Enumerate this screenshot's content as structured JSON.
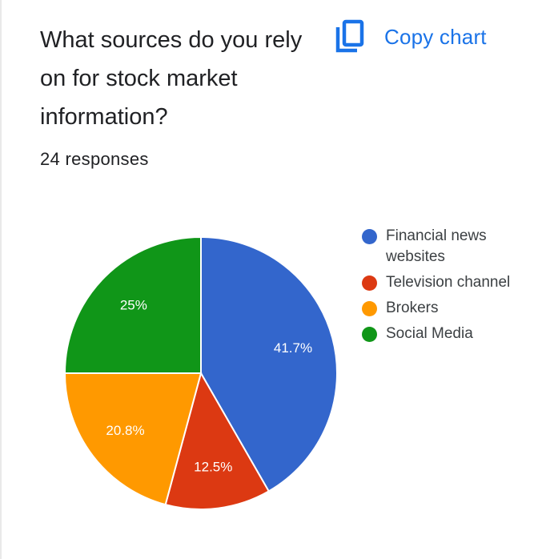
{
  "title": "What sources do you rely on for stock market information?",
  "responses": "24 responses",
  "toolbar": {
    "copy_label": "Copy chart",
    "copy_icon": "copy-icon"
  },
  "colors": {
    "blue": "#3366cc",
    "red": "#dc3912",
    "orange": "#ff9900",
    "green": "#109618",
    "accent": "#1a73e8"
  },
  "chart_data": {
    "type": "pie",
    "legend_position": "right",
    "slices": [
      {
        "label": "Financial news websites",
        "value": 41.7,
        "display": "41.7%",
        "color": "#3366cc"
      },
      {
        "label": "Television channel",
        "value": 12.5,
        "display": "12.5%",
        "color": "#dc3912"
      },
      {
        "label": "Brokers",
        "value": 20.8,
        "display": "20.8%",
        "color": "#ff9900"
      },
      {
        "label": "Social Media",
        "value": 25,
        "display": "25%",
        "color": "#109618"
      }
    ]
  }
}
